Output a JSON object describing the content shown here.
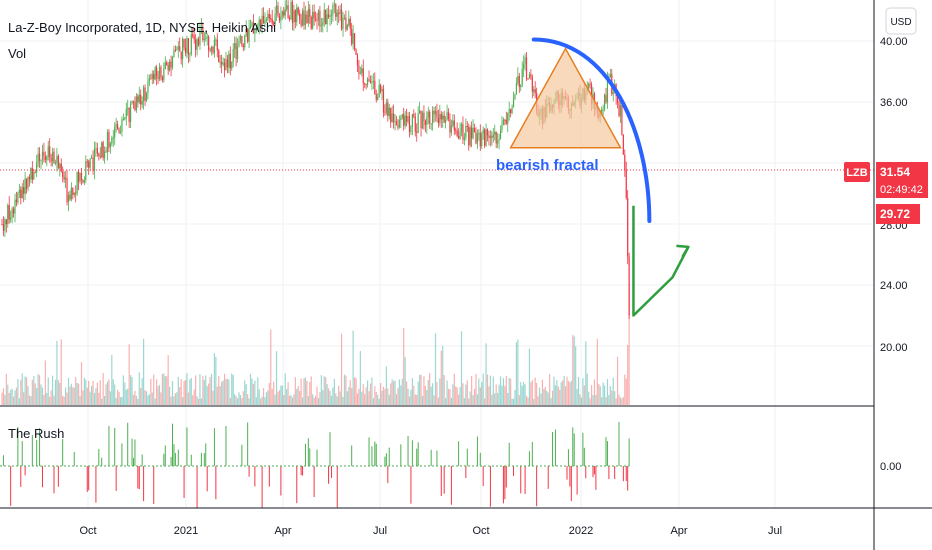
{
  "header": {
    "symbol_line": "La-Z-Boy Incorporated, 1D, NYSE, Heikin Ashi",
    "vol_label": "Vol",
    "currency_button": "USD"
  },
  "colors": {
    "up": "#26a69a",
    "down": "#ef5350",
    "candle_up": "#4caf50",
    "candle_down": "#f23645",
    "arc": "#2962ff",
    "triangle_fill": "#f7c9a0",
    "triangle_stroke": "#e67e22",
    "projection": "#2e9e3e",
    "price_tag": "#f23645",
    "rush_zero": "#4caf50"
  },
  "annotation": {
    "text": "bearish fractal"
  },
  "price_tags": {
    "ticker": "LZB",
    "last_price": "31.54",
    "countdown": "02:49:42",
    "low_price": "29.72"
  },
  "rush": {
    "label": "The Rush",
    "zero_label": "0.00"
  },
  "chart_data": {
    "type": "candlestick",
    "title": "La-Z-Boy Incorporated, 1D, NYSE, Heikin Ashi",
    "price_axis": {
      "ticks": [
        "40.00",
        "36.00",
        "28.00",
        "24.00",
        "20.00"
      ],
      "ylim": [
        17,
        42
      ]
    },
    "time_axis": {
      "ticks": [
        "Oct",
        "2021",
        "Apr",
        "Jul",
        "Oct",
        "2022",
        "Apr",
        "Jul"
      ]
    },
    "anchors": [
      {
        "day": 0,
        "price": 28.0
      },
      {
        "day": 10,
        "price": 29.5
      },
      {
        "day": 20,
        "price": 31.5
      },
      {
        "day": 30,
        "price": 32.6
      },
      {
        "day": 40,
        "price": 32.2
      },
      {
        "day": 45,
        "price": 30.0
      },
      {
        "day": 55,
        "price": 31.2
      },
      {
        "day": 70,
        "price": 33.0
      },
      {
        "day": 85,
        "price": 35.0
      },
      {
        "day": 105,
        "price": 37.5
      },
      {
        "day": 125,
        "price": 39.5
      },
      {
        "day": 140,
        "price": 40.5
      },
      {
        "day": 155,
        "price": 38.5
      },
      {
        "day": 175,
        "price": 41.0
      },
      {
        "day": 195,
        "price": 42.0
      },
      {
        "day": 215,
        "price": 41.5
      },
      {
        "day": 230,
        "price": 41.8
      },
      {
        "day": 240,
        "price": 41.0
      },
      {
        "day": 248,
        "price": 38.0
      },
      {
        "day": 258,
        "price": 37.0
      },
      {
        "day": 270,
        "price": 35.0
      },
      {
        "day": 285,
        "price": 34.5
      },
      {
        "day": 300,
        "price": 35.5
      },
      {
        "day": 315,
        "price": 34.0
      },
      {
        "day": 330,
        "price": 33.5
      },
      {
        "day": 345,
        "price": 34.0
      },
      {
        "day": 355,
        "price": 36.5
      },
      {
        "day": 362,
        "price": 38.5
      },
      {
        "day": 372,
        "price": 35.0
      },
      {
        "day": 385,
        "price": 36.5
      },
      {
        "day": 395,
        "price": 35.5
      },
      {
        "day": 405,
        "price": 37.0
      },
      {
        "day": 415,
        "price": 35.0
      },
      {
        "day": 420,
        "price": 37.5
      },
      {
        "day": 428,
        "price": 35.5
      },
      {
        "day": 432,
        "price": 29.72
      },
      {
        "day": 434,
        "price": 22.0
      }
    ],
    "last_day": 434,
    "annotations": {
      "arc": "blue quarter-arc from the November top curving down to about 28",
      "triangle": {
        "apex": 39.5,
        "base": 33.0
      },
      "arrow_start": 22.0,
      "arrow_bottom_line": 29.72,
      "arrow_end": 26.5
    }
  }
}
